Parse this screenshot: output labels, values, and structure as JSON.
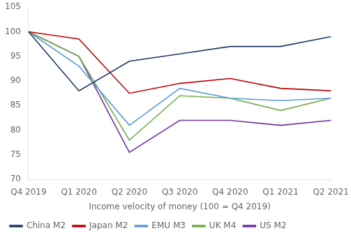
{
  "chart_data": {
    "type": "line",
    "xlabel": "Income velocity of money (100 = Q4 2019)",
    "categories": [
      "Q4 2019",
      "Q1 2020",
      "Q2 2020",
      "Q3 2020",
      "Q4 2020",
      "Q1 2021",
      "Q2 2021"
    ],
    "series": [
      {
        "name": "China M2",
        "color": "#1f3864",
        "values": [
          100,
          88,
          94,
          95.5,
          97,
          97,
          99
        ]
      },
      {
        "name": "Japan M2",
        "color": "#c00000",
        "values": [
          100,
          98.5,
          87.5,
          89.5,
          90.5,
          88.5,
          88
        ]
      },
      {
        "name": "EMU M3",
        "color": "#5b9bd5",
        "values": [
          100,
          93,
          81,
          88.5,
          86.5,
          86,
          86.5
        ]
      },
      {
        "name": "UK M4",
        "color": "#70ad47",
        "values": [
          100,
          95,
          78,
          87,
          86.5,
          84,
          86.5
        ]
      },
      {
        "name": "US M2",
        "color": "#7030a0",
        "values": [
          100,
          95,
          75.5,
          82,
          82,
          81,
          82
        ]
      }
    ],
    "ylim": [
      70,
      105
    ],
    "yticks": [
      70,
      75,
      80,
      85,
      90,
      95,
      100,
      105
    ],
    "grid": false,
    "legend": "lower left"
  }
}
